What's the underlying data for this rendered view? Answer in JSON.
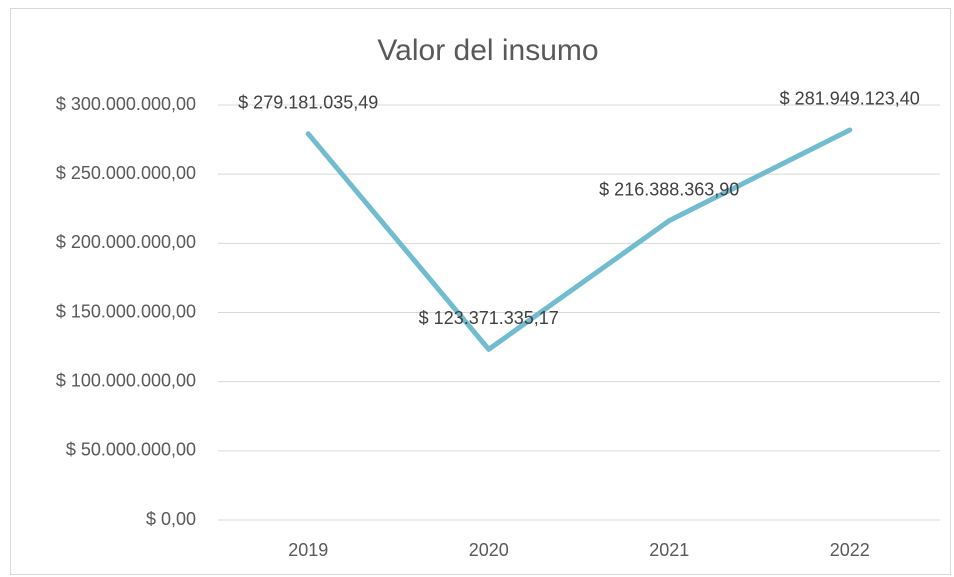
{
  "chart_data": {
    "type": "line",
    "title": "Valor del insumo",
    "categories": [
      "2019",
      "2020",
      "2021",
      "2022"
    ],
    "series": [
      {
        "name": "Valor del insumo",
        "color": "#72bccf",
        "values": [
          279181035.49,
          123371335.17,
          216388363.9,
          281949123.4
        ],
        "value_labels": [
          "$ 279.181.035,49",
          "$ 123.371.335,17",
          "$ 216.388.363,90",
          "$ 281.949.123,40"
        ]
      }
    ],
    "ylim": [
      0,
      300000000
    ],
    "yticks": [
      {
        "value": 0,
        "label": "$ 0,00"
      },
      {
        "value": 50000000,
        "label": "$ 50.000.000,00"
      },
      {
        "value": 100000000,
        "label": "$ 100.000.000,00"
      },
      {
        "value": 150000000,
        "label": "$ 150.000.000,00"
      },
      {
        "value": 200000000,
        "label": "$ 200.000.000,00"
      },
      {
        "value": 250000000,
        "label": "$ 250.000.000,00"
      },
      {
        "value": 300000000,
        "label": "$ 300.000.000,00"
      }
    ],
    "grid": true
  }
}
